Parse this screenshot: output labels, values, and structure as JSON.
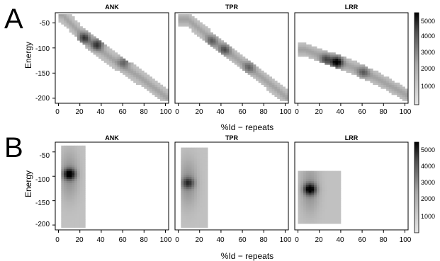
{
  "figure": {
    "panel_letters": [
      "A",
      "B"
    ],
    "panel_titles": [
      "ANK",
      "TPR",
      "LRR"
    ],
    "xlabel": "%Id − repeats",
    "ylabel": "Energy",
    "x_ticks": [
      "0",
      "20",
      "40",
      "60",
      "80",
      "100"
    ],
    "y_ticks": [
      "-50",
      "-100",
      "-150",
      "-200"
    ],
    "colorbar_ticks": [
      "5000",
      "4000",
      "3000",
      "2000",
      "1000"
    ]
  },
  "chart_data": [
    {
      "type": "heatmap",
      "row": "A",
      "title": "ANK",
      "xlabel": "%Id − repeats",
      "ylabel": "Energy",
      "xlim": [
        -3,
        103
      ],
      "ylim": [
        -210,
        -30
      ],
      "x_ticks": [
        0,
        20,
        40,
        60,
        80,
        100
      ],
      "y_ticks": [
        -50,
        -100,
        -150,
        -200
      ],
      "ridge": [
        [
          2,
          -35
        ],
        [
          25,
          -85
        ],
        [
          50,
          -125
        ],
        [
          75,
          -160
        ],
        [
          100,
          -200
        ]
      ],
      "ridge_halfwidth": 17,
      "peaks": [
        {
          "x": 23,
          "y": -82,
          "value": 3000
        },
        {
          "x": 35,
          "y": -95,
          "value": 3200
        },
        {
          "x": 60,
          "y": -130,
          "value": 1800
        }
      ],
      "colorbar": {
        "min": 0,
        "max": 5300,
        "ticks": [
          1000,
          2000,
          3000,
          4000,
          5000
        ]
      }
    },
    {
      "type": "heatmap",
      "row": "A",
      "title": "TPR",
      "xlabel": "%Id − repeats",
      "ylabel": "Energy",
      "xlim": [
        -3,
        103
      ],
      "ylim": [
        -210,
        -30
      ],
      "x_ticks": [
        0,
        20,
        40,
        60,
        80,
        100
      ],
      "y_ticks": [
        -50,
        -100,
        -150,
        -200
      ],
      "ridge": [
        [
          8,
          -45
        ],
        [
          30,
          -85
        ],
        [
          55,
          -125
        ],
        [
          80,
          -165
        ],
        [
          100,
          -200
        ]
      ],
      "ridge_halfwidth": 16,
      "peaks": [
        {
          "x": 30,
          "y": -88,
          "value": 1800
        },
        {
          "x": 42,
          "y": -105,
          "value": 2200
        },
        {
          "x": 65,
          "y": -140,
          "value": 1600
        }
      ],
      "colorbar": {
        "min": 0,
        "max": 5300,
        "ticks": [
          1000,
          2000,
          3000,
          4000,
          5000
        ]
      }
    },
    {
      "type": "heatmap",
      "row": "A",
      "title": "LRR",
      "xlabel": "%Id − repeats",
      "ylabel": "Energy",
      "xlim": [
        -3,
        103
      ],
      "ylim": [
        -210,
        -30
      ],
      "x_ticks": [
        0,
        20,
        40,
        60,
        80,
        100
      ],
      "y_ticks": [
        -50,
        -100,
        -150,
        -200
      ],
      "ridge": [
        [
          5,
          -105
        ],
        [
          30,
          -125
        ],
        [
          50,
          -140
        ],
        [
          75,
          -165
        ],
        [
          100,
          -195
        ]
      ],
      "ridge_halfwidth": 14,
      "peaks": [
        {
          "x": 35,
          "y": -130,
          "value": 5300
        },
        {
          "x": 25,
          "y": -125,
          "value": 2500
        },
        {
          "x": 60,
          "y": -150,
          "value": 1800
        }
      ],
      "colorbar": {
        "min": 0,
        "max": 5300,
        "ticks": [
          1000,
          2000,
          3000,
          4000,
          5000
        ]
      }
    },
    {
      "type": "heatmap",
      "row": "B",
      "title": "ANK",
      "xlabel": "%Id − repeats",
      "ylabel": "Energy",
      "xlim": [
        -3,
        103
      ],
      "ylim": [
        -210,
        -30
      ],
      "x_ticks": [
        0,
        20,
        40,
        60,
        80,
        100
      ],
      "y_ticks": [
        -50,
        -100,
        -150,
        -200
      ],
      "blob": {
        "x_range": [
          2,
          24
        ],
        "y_range": [
          -205,
          -38
        ],
        "center_x": 9,
        "center_y": -100
      },
      "peaks": [
        {
          "x": 9,
          "y": -97,
          "value": 5300
        }
      ],
      "colorbar": {
        "min": 0,
        "max": 5300,
        "ticks": [
          1000,
          2000,
          3000,
          4000,
          5000
        ]
      }
    },
    {
      "type": "heatmap",
      "row": "B",
      "title": "TPR",
      "xlabel": "%Id − repeats",
      "ylabel": "Energy",
      "xlim": [
        -3,
        103
      ],
      "ylim": [
        -210,
        -30
      ],
      "x_ticks": [
        0,
        20,
        40,
        60,
        80,
        100
      ],
      "y_ticks": [
        -50,
        -100,
        -150,
        -200
      ],
      "blob": {
        "x_range": [
          2,
          26
        ],
        "y_range": [
          -205,
          -45
        ],
        "center_x": 8,
        "center_y": -115
      },
      "peaks": [
        {
          "x": 8,
          "y": -115,
          "value": 3000
        }
      ],
      "colorbar": {
        "min": 0,
        "max": 5300,
        "ticks": [
          1000,
          2000,
          3000,
          4000,
          5000
        ]
      }
    },
    {
      "type": "heatmap",
      "row": "B",
      "title": "LRR",
      "xlabel": "%Id − repeats",
      "ylabel": "Energy",
      "xlim": [
        -3,
        103
      ],
      "ylim": [
        -210,
        -30
      ],
      "x_ticks": [
        0,
        20,
        40,
        60,
        80,
        100
      ],
      "y_ticks": [
        -50,
        -100,
        -150,
        -200
      ],
      "blob": {
        "x_range": [
          0,
          38
        ],
        "y_range": [
          -200,
          -92
        ],
        "center_x": 10,
        "center_y": -128
      },
      "peaks": [
        {
          "x": 10,
          "y": -128,
          "value": 5300
        }
      ],
      "colorbar": {
        "min": 0,
        "max": 5300,
        "ticks": [
          1000,
          2000,
          3000,
          4000,
          5000
        ]
      }
    }
  ]
}
